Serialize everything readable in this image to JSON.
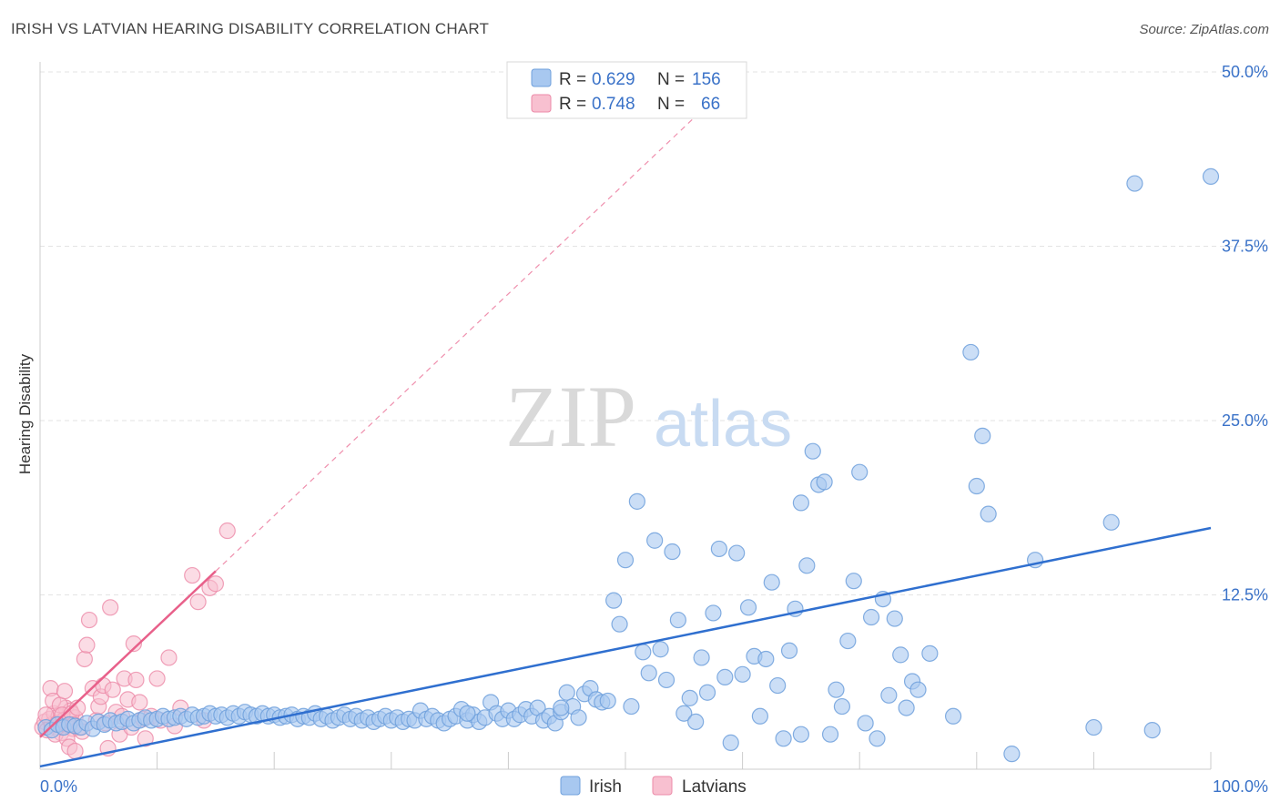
{
  "title": "IRISH VS LATVIAN HEARING DISABILITY CORRELATION CHART",
  "source": "Source: ZipAtlas.com",
  "watermark": {
    "zip": "ZIP",
    "atlas": "atlas"
  },
  "legend_top": [
    {
      "r_label": "R =",
      "r_value": "0.629",
      "n_label": "N =",
      "n_value": "156",
      "color": "#a8c8f0"
    },
    {
      "r_label": "R =",
      "r_value": "0.748",
      "n_label": "N =",
      "n_value": "66",
      "color": "#f5b6c8"
    }
  ],
  "colors": {
    "irish_fill": "#a8c8f0",
    "irish_stroke": "#6fa0dc",
    "irish_line": "#2f6fcf",
    "latvian_fill": "#f8c0d0",
    "latvian_stroke": "#ec8aa8",
    "latvian_line": "#e8608a",
    "tick": "#3a72c8",
    "grid": "#e3e3e3"
  },
  "chart_data": {
    "type": "scatter",
    "title": "IRISH VS LATVIAN HEARING DISABILITY CORRELATION CHART",
    "xlabel": "",
    "ylabel": "Hearing Disability",
    "xlim": [
      0,
      100
    ],
    "ylim": [
      0,
      50
    ],
    "x_tick_labels": [
      "0.0%",
      "100.0%"
    ],
    "y_ticks": [
      12.5,
      25.0,
      37.5,
      50.0
    ],
    "y_tick_labels": [
      "12.5%",
      "25.0%",
      "37.5%",
      "50.0%"
    ],
    "grid": true,
    "legend_position": "bottom-center",
    "series": [
      {
        "name": "Irish",
        "color": "#a8c8f0",
        "trend": {
          "x": [
            0,
            100
          ],
          "y": [
            0.2,
            17.3
          ]
        },
        "points": [
          [
            0.5,
            3.0
          ],
          [
            1.0,
            2.8
          ],
          [
            1.5,
            3.2
          ],
          [
            2.0,
            3.0
          ],
          [
            2.5,
            3.2
          ],
          [
            3.0,
            3.1
          ],
          [
            3.5,
            3.0
          ],
          [
            4.0,
            3.3
          ],
          [
            4.5,
            2.9
          ],
          [
            5.0,
            3.4
          ],
          [
            5.5,
            3.2
          ],
          [
            6.0,
            3.5
          ],
          [
            6.5,
            3.3
          ],
          [
            7.0,
            3.4
          ],
          [
            7.5,
            3.6
          ],
          [
            8.0,
            3.3
          ],
          [
            8.5,
            3.5
          ],
          [
            9.0,
            3.7
          ],
          [
            9.5,
            3.5
          ],
          [
            10.0,
            3.6
          ],
          [
            10.5,
            3.8
          ],
          [
            11.0,
            3.6
          ],
          [
            11.5,
            3.7
          ],
          [
            12.0,
            3.8
          ],
          [
            12.5,
            3.6
          ],
          [
            13.0,
            3.9
          ],
          [
            13.5,
            3.7
          ],
          [
            14.0,
            3.8
          ],
          [
            14.5,
            4.0
          ],
          [
            15.0,
            3.8
          ],
          [
            15.5,
            3.9
          ],
          [
            16.0,
            3.7
          ],
          [
            16.5,
            4.0
          ],
          [
            17.0,
            3.8
          ],
          [
            17.5,
            4.1
          ],
          [
            18.0,
            3.9
          ],
          [
            18.5,
            3.8
          ],
          [
            19.0,
            4.0
          ],
          [
            19.5,
            3.8
          ],
          [
            20.0,
            3.9
          ],
          [
            20.5,
            3.7
          ],
          [
            21.0,
            3.8
          ],
          [
            21.5,
            3.9
          ],
          [
            22.0,
            3.6
          ],
          [
            22.5,
            3.8
          ],
          [
            23.0,
            3.7
          ],
          [
            23.5,
            4.0
          ],
          [
            24.0,
            3.6
          ],
          [
            24.5,
            3.8
          ],
          [
            25.0,
            3.5
          ],
          [
            25.5,
            3.7
          ],
          [
            26.0,
            3.9
          ],
          [
            26.5,
            3.6
          ],
          [
            27.0,
            3.8
          ],
          [
            27.5,
            3.5
          ],
          [
            28.0,
            3.7
          ],
          [
            28.5,
            3.4
          ],
          [
            29.0,
            3.6
          ],
          [
            29.5,
            3.8
          ],
          [
            30.0,
            3.5
          ],
          [
            30.5,
            3.7
          ],
          [
            31.0,
            3.4
          ],
          [
            31.5,
            3.6
          ],
          [
            32.0,
            3.5
          ],
          [
            32.5,
            4.2
          ],
          [
            33.0,
            3.6
          ],
          [
            33.5,
            3.8
          ],
          [
            34.0,
            3.5
          ],
          [
            34.5,
            3.3
          ],
          [
            35.0,
            3.6
          ],
          [
            35.5,
            3.8
          ],
          [
            36.0,
            4.3
          ],
          [
            36.5,
            3.5
          ],
          [
            37.0,
            3.9
          ],
          [
            37.5,
            3.4
          ],
          [
            38.0,
            3.7
          ],
          [
            38.5,
            4.8
          ],
          [
            39.0,
            4.0
          ],
          [
            39.5,
            3.6
          ],
          [
            40.0,
            4.2
          ],
          [
            40.5,
            3.6
          ],
          [
            41.0,
            3.9
          ],
          [
            41.5,
            4.3
          ],
          [
            42.0,
            3.8
          ],
          [
            42.5,
            4.4
          ],
          [
            43.0,
            3.5
          ],
          [
            43.5,
            3.8
          ],
          [
            44.0,
            3.3
          ],
          [
            44.5,
            4.1
          ],
          [
            45.0,
            5.5
          ],
          [
            45.5,
            4.5
          ],
          [
            46.0,
            3.7
          ],
          [
            46.5,
            5.4
          ],
          [
            47.0,
            5.8
          ],
          [
            47.5,
            5.0
          ],
          [
            48.0,
            4.8
          ],
          [
            48.5,
            4.9
          ],
          [
            49.0,
            12.1
          ],
          [
            49.5,
            10.4
          ],
          [
            50.0,
            15.0
          ],
          [
            51.0,
            19.2
          ],
          [
            51.5,
            8.4
          ],
          [
            52.0,
            6.9
          ],
          [
            52.5,
            16.4
          ],
          [
            53.0,
            8.6
          ],
          [
            53.5,
            6.4
          ],
          [
            54.0,
            15.6
          ],
          [
            54.5,
            10.7
          ],
          [
            55.0,
            4.0
          ],
          [
            55.5,
            5.1
          ],
          [
            56.0,
            3.4
          ],
          [
            56.5,
            8.0
          ],
          [
            57.0,
            5.5
          ],
          [
            57.5,
            11.2
          ],
          [
            58.0,
            15.8
          ],
          [
            58.5,
            6.6
          ],
          [
            59.0,
            1.9
          ],
          [
            59.5,
            15.5
          ],
          [
            60.0,
            6.8
          ],
          [
            60.5,
            11.6
          ],
          [
            61.0,
            8.1
          ],
          [
            61.5,
            3.8
          ],
          [
            62.0,
            7.9
          ],
          [
            62.5,
            13.4
          ],
          [
            63.0,
            6.0
          ],
          [
            63.5,
            2.2
          ],
          [
            64.0,
            8.5
          ],
          [
            64.5,
            11.5
          ],
          [
            65.0,
            19.1
          ],
          [
            65.5,
            14.6
          ],
          [
            66.0,
            22.8
          ],
          [
            66.5,
            20.4
          ],
          [
            67.0,
            20.6
          ],
          [
            67.5,
            2.5
          ],
          [
            68.0,
            5.7
          ],
          [
            68.5,
            4.5
          ],
          [
            69.0,
            9.2
          ],
          [
            69.5,
            13.5
          ],
          [
            70.0,
            21.3
          ],
          [
            70.5,
            3.3
          ],
          [
            71.0,
            10.9
          ],
          [
            71.5,
            2.2
          ],
          [
            72.0,
            12.2
          ],
          [
            72.5,
            5.3
          ],
          [
            73.0,
            10.8
          ],
          [
            73.5,
            8.2
          ],
          [
            74.0,
            4.4
          ],
          [
            74.5,
            6.3
          ],
          [
            75.0,
            5.7
          ],
          [
            76.0,
            8.3
          ],
          [
            79.5,
            29.9
          ],
          [
            80.0,
            20.3
          ],
          [
            80.5,
            23.9
          ],
          [
            81.0,
            18.3
          ],
          [
            83.0,
            1.1
          ],
          [
            85.0,
            15.0
          ],
          [
            91.5,
            17.7
          ],
          [
            93.5,
            42.0
          ],
          [
            100.0,
            42.5
          ],
          [
            78.0,
            3.8
          ],
          [
            90.0,
            3.0
          ],
          [
            95.0,
            2.8
          ],
          [
            65.0,
            2.5
          ],
          [
            50.5,
            4.5
          ],
          [
            44.5,
            4.4
          ],
          [
            36.5,
            4.0
          ]
        ]
      },
      {
        "name": "Latvians",
        "color": "#f8c0d0",
        "trend": {
          "x": [
            0,
            15
          ],
          "y": [
            2.3,
            14.2
          ]
        },
        "trend_dashed": {
          "x": [
            15,
            60
          ],
          "y": [
            14.2,
            50
          ]
        },
        "points": [
          [
            0.2,
            3.0
          ],
          [
            0.4,
            3.4
          ],
          [
            0.6,
            2.8
          ],
          [
            0.8,
            3.6
          ],
          [
            1.0,
            3.2
          ],
          [
            1.2,
            4.0
          ],
          [
            1.4,
            3.0
          ],
          [
            1.6,
            3.8
          ],
          [
            1.8,
            2.6
          ],
          [
            2.0,
            3.5
          ],
          [
            2.2,
            4.4
          ],
          [
            2.4,
            3.1
          ],
          [
            2.6,
            4.2
          ],
          [
            2.8,
            2.9
          ],
          [
            3.0,
            3.7
          ],
          [
            0.5,
            3.9
          ],
          [
            0.9,
            5.8
          ],
          [
            1.1,
            4.9
          ],
          [
            1.3,
            2.5
          ],
          [
            1.5,
            3.3
          ],
          [
            1.7,
            4.6
          ],
          [
            1.9,
            3.9
          ],
          [
            2.1,
            5.6
          ],
          [
            2.3,
            2.2
          ],
          [
            2.5,
            1.6
          ],
          [
            2.7,
            4.0
          ],
          [
            2.9,
            3.2
          ],
          [
            3.2,
            4.4
          ],
          [
            3.4,
            3.0
          ],
          [
            3.6,
            2.7
          ],
          [
            3.8,
            7.9
          ],
          [
            4.0,
            8.9
          ],
          [
            4.2,
            10.7
          ],
          [
            4.5,
            5.8
          ],
          [
            4.8,
            3.5
          ],
          [
            5.0,
            4.5
          ],
          [
            5.2,
            5.2
          ],
          [
            5.4,
            6.0
          ],
          [
            5.6,
            3.3
          ],
          [
            3.0,
            1.3
          ],
          [
            5.8,
            1.5
          ],
          [
            6.0,
            11.6
          ],
          [
            6.2,
            5.7
          ],
          [
            6.5,
            4.1
          ],
          [
            6.8,
            2.5
          ],
          [
            7.0,
            3.8
          ],
          [
            7.2,
            6.5
          ],
          [
            7.5,
            5.0
          ],
          [
            7.8,
            3.0
          ],
          [
            8.0,
            9.0
          ],
          [
            8.2,
            6.4
          ],
          [
            8.5,
            4.8
          ],
          [
            8.8,
            3.6
          ],
          [
            9.0,
            2.2
          ],
          [
            9.5,
            3.8
          ],
          [
            10.0,
            6.5
          ],
          [
            10.3,
            3.5
          ],
          [
            11.0,
            8.0
          ],
          [
            11.5,
            3.1
          ],
          [
            12.0,
            4.4
          ],
          [
            13.0,
            13.9
          ],
          [
            13.5,
            12.0
          ],
          [
            14.0,
            3.5
          ],
          [
            14.5,
            13.0
          ],
          [
            15.0,
            13.3
          ],
          [
            16.0,
            17.1
          ]
        ]
      }
    ]
  },
  "legend_bottom": [
    {
      "label": "Irish",
      "color": "#a8c8f0"
    },
    {
      "label": "Latvians",
      "color": "#f8c0d0"
    }
  ]
}
